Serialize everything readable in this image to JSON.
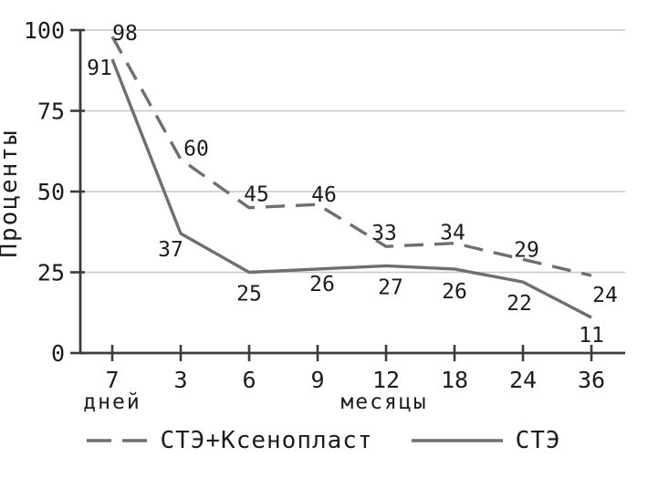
{
  "chart_data": {
    "type": "line",
    "categories": [
      "7",
      "3",
      "6",
      "9",
      "12",
      "18",
      "24",
      "36"
    ],
    "x_sub_labels": {
      "under_first": "дней",
      "center": "месяцы"
    },
    "series": [
      {
        "name": "СТЭ+Ксенопласт",
        "style": "dashed",
        "values": [
          98,
          60,
          45,
          46,
          33,
          34,
          29,
          24
        ]
      },
      {
        "name": "СТЭ",
        "style": "solid",
        "values": [
          91,
          37,
          25,
          26,
          27,
          26,
          22,
          11
        ]
      }
    ],
    "title": "",
    "xlabel": "",
    "ylabel": "Проценты",
    "yticks": [
      0,
      25,
      50,
      75,
      100
    ],
    "ylim": [
      0,
      100
    ],
    "grid": true,
    "data_labels": true,
    "legend_position": "bottom",
    "colors": {
      "line": "#6f6f6f",
      "grid": "#c7c7c7",
      "axis": "#3c3c3c",
      "text": "#1c1c1c"
    }
  }
}
